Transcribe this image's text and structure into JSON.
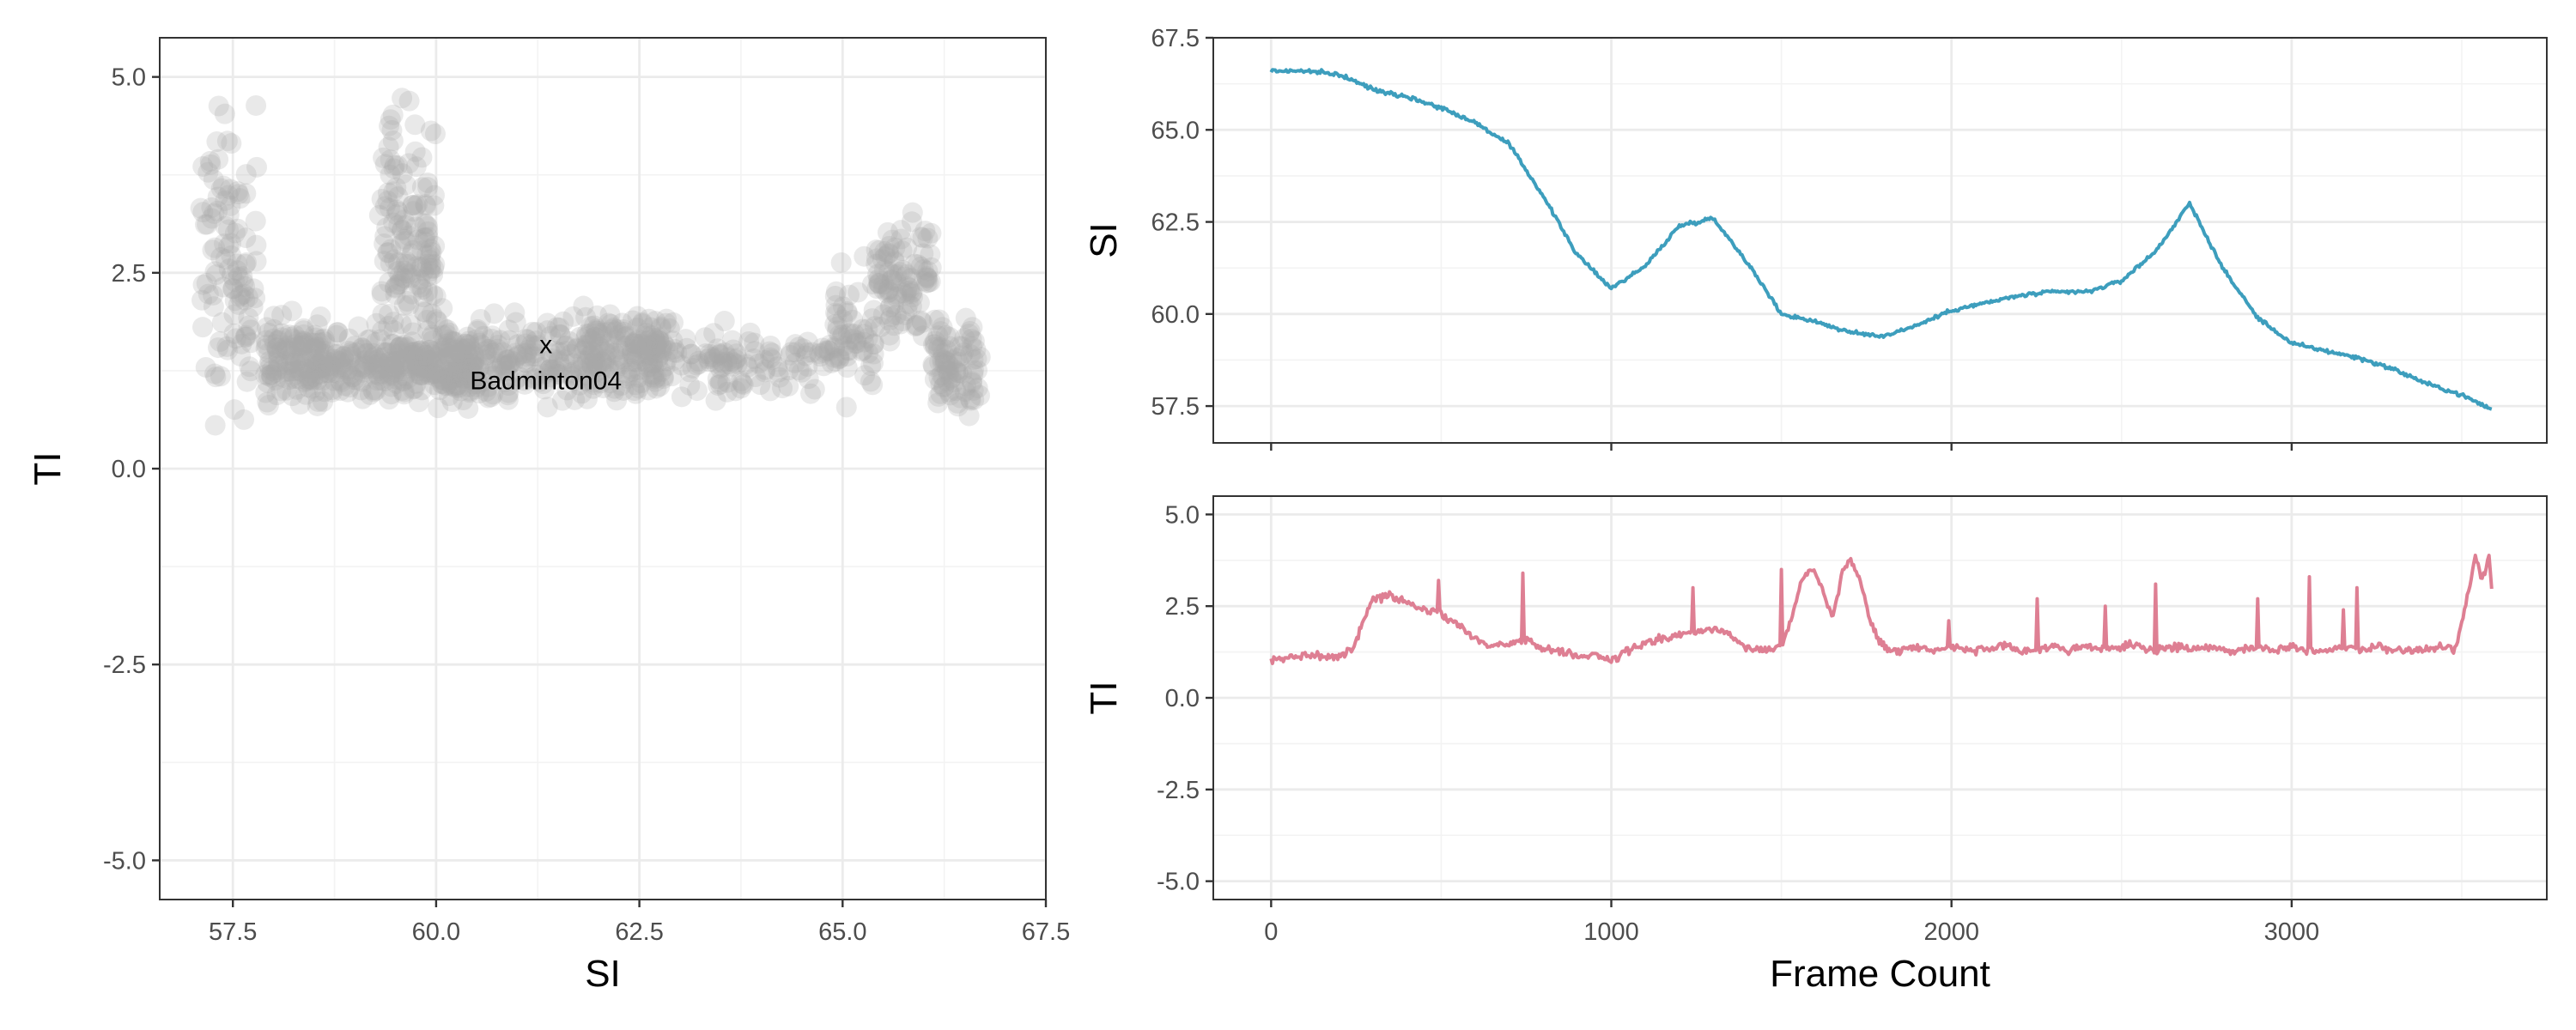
{
  "chart_data": [
    {
      "id": "scatter",
      "type": "scatter",
      "xlabel": "SI",
      "ylabel": "TI",
      "xlim": [
        56.6,
        67.5
      ],
      "ylim": [
        -5.5,
        5.5
      ],
      "xticks": [
        57.5,
        60.0,
        62.5,
        65.0,
        67.5
      ],
      "xtick_labels": [
        "57.5",
        "60.0",
        "62.5",
        "65.0",
        "67.5"
      ],
      "yticks": [
        -5.0,
        -2.5,
        0.0,
        2.5,
        5.0
      ],
      "ytick_labels": [
        "-5.0",
        "-2.5",
        "0.0",
        "2.5",
        "5.0"
      ],
      "grid": true,
      "point_color": "#a6a6a6",
      "point_opacity": 0.25,
      "annotation": {
        "x": 61.35,
        "y": 1.57,
        "marker": "x",
        "label": "Badminton04"
      },
      "point_clusters": [
        {
          "x": [
            57.1,
            57.8
          ],
          "y": [
            0.9,
            4.3
          ],
          "n": 110
        },
        {
          "x": [
            57.9,
            58.6
          ],
          "y": [
            0.9,
            1.9
          ],
          "n": 140
        },
        {
          "x": [
            58.6,
            60.5
          ],
          "y": [
            0.9,
            1.7
          ],
          "n": 300
        },
        {
          "x": [
            59.3,
            60.0
          ],
          "y": [
            1.5,
            4.3
          ],
          "n": 150
        },
        {
          "x": [
            60.0,
            62.8
          ],
          "y": [
            0.9,
            1.9
          ],
          "n": 300
        },
        {
          "x": [
            61.8,
            63.0
          ],
          "y": [
            1.2,
            2.0
          ],
          "n": 90
        },
        {
          "x": [
            63.0,
            64.9
          ],
          "y": [
            1.0,
            1.7
          ],
          "n": 110
        },
        {
          "x": [
            64.9,
            65.4
          ],
          "y": [
            1.0,
            2.4
          ],
          "n": 60
        },
        {
          "x": [
            65.4,
            66.1
          ],
          "y": [
            1.8,
            3.1
          ],
          "n": 100
        },
        {
          "x": [
            66.1,
            66.7
          ],
          "y": [
            0.8,
            1.9
          ],
          "n": 90
        }
      ]
    },
    {
      "id": "si_series",
      "type": "line",
      "xlabel": "",
      "ylabel": "SI",
      "color": "#3d9ebd",
      "xlim": [
        -170,
        3750
      ],
      "ylim": [
        56.5,
        67.5
      ],
      "xticks": [
        0,
        1000,
        2000,
        3000
      ],
      "yticks": [
        57.5,
        60.0,
        62.5,
        65.0,
        67.5
      ],
      "ytick_labels": [
        "57.5",
        "60.0",
        "62.5",
        "65.0",
        "67.5"
      ],
      "grid": true,
      "x": [
        0,
        100,
        200,
        300,
        400,
        500,
        600,
        700,
        800,
        900,
        1000,
        1100,
        1200,
        1300,
        1400,
        1500,
        1600,
        1700,
        1800,
        1900,
        2000,
        2100,
        2200,
        2300,
        2400,
        2500,
        2600,
        2700,
        2800,
        2900,
        3000,
        3100,
        3200,
        3300,
        3400,
        3500,
        3590
      ],
      "y": [
        66.6,
        66.6,
        66.5,
        66.1,
        65.9,
        65.6,
        65.2,
        64.6,
        63.2,
        61.6,
        60.7,
        61.3,
        62.4,
        62.6,
        61.4,
        60.0,
        59.8,
        59.5,
        59.4,
        59.7,
        60.1,
        60.3,
        60.5,
        60.6,
        60.6,
        60.9,
        61.7,
        63.0,
        61.2,
        59.9,
        59.2,
        59.0,
        58.8,
        58.5,
        58.1,
        57.8,
        57.4
      ]
    },
    {
      "id": "ti_series",
      "type": "line",
      "xlabel": "Frame Count",
      "ylabel": "TI",
      "color": "#de7f93",
      "xlim": [
        -170,
        3750
      ],
      "ylim": [
        -5.5,
        5.5
      ],
      "xticks": [
        0,
        1000,
        2000,
        3000
      ],
      "xtick_labels": [
        "0",
        "1000",
        "2000",
        "3000"
      ],
      "yticks": [
        -5.0,
        -2.5,
        0.0,
        2.5,
        5.0
      ],
      "ytick_labels": [
        "-5.0",
        "-2.5",
        "0.0",
        "2.5",
        "5.0"
      ],
      "grid": true,
      "x": [
        0,
        60,
        120,
        180,
        240,
        270,
        300,
        350,
        400,
        450,
        500,
        550,
        600,
        650,
        700,
        750,
        800,
        850,
        900,
        950,
        1000,
        1050,
        1100,
        1150,
        1200,
        1250,
        1300,
        1350,
        1400,
        1450,
        1500,
        1530,
        1560,
        1590,
        1620,
        1650,
        1680,
        1700,
        1730,
        1760,
        1790,
        1820,
        1850,
        1900,
        1950,
        2000,
        2050,
        2100,
        2150,
        2200,
        2250,
        2300,
        2350,
        2400,
        2450,
        2500,
        2550,
        2600,
        2650,
        2700,
        2750,
        2800,
        2850,
        2900,
        2950,
        3000,
        3050,
        3100,
        3150,
        3200,
        3250,
        3300,
        3350,
        3400,
        3450,
        3480,
        3510,
        3540,
        3560,
        3580,
        3590
      ],
      "y": [
        1.0,
        1.1,
        1.2,
        1.1,
        1.3,
        2.1,
        2.7,
        2.8,
        2.6,
        2.4,
        2.3,
        2.0,
        1.6,
        1.4,
        1.5,
        1.6,
        1.3,
        1.3,
        1.1,
        1.2,
        1.0,
        1.3,
        1.5,
        1.6,
        1.7,
        1.8,
        1.9,
        1.7,
        1.4,
        1.3,
        1.4,
        2.2,
        3.2,
        3.6,
        3.0,
        2.2,
        3.4,
        3.8,
        3.3,
        2.1,
        1.5,
        1.3,
        1.3,
        1.4,
        1.3,
        1.4,
        1.3,
        1.3,
        1.4,
        1.3,
        1.3,
        1.4,
        1.3,
        1.4,
        1.3,
        1.4,
        1.4,
        1.3,
        1.4,
        1.3,
        1.4,
        1.3,
        1.3,
        1.4,
        1.3,
        1.4,
        1.3,
        1.3,
        1.4,
        1.3,
        1.4,
        1.3,
        1.3,
        1.3,
        1.4,
        1.3,
        2.4,
        3.9,
        3.2,
        3.8,
        2.9
      ],
      "spikes": [
        [
          490,
          3.2
        ],
        [
          740,
          3.4
        ],
        [
          1240,
          3.0
        ],
        [
          1500,
          3.5
        ],
        [
          1990,
          2.1
        ],
        [
          2250,
          2.7
        ],
        [
          2450,
          2.5
        ],
        [
          2600,
          3.1
        ],
        [
          2900,
          2.7
        ],
        [
          3050,
          3.3
        ],
        [
          3150,
          2.4
        ],
        [
          3190,
          3.0
        ]
      ]
    }
  ]
}
